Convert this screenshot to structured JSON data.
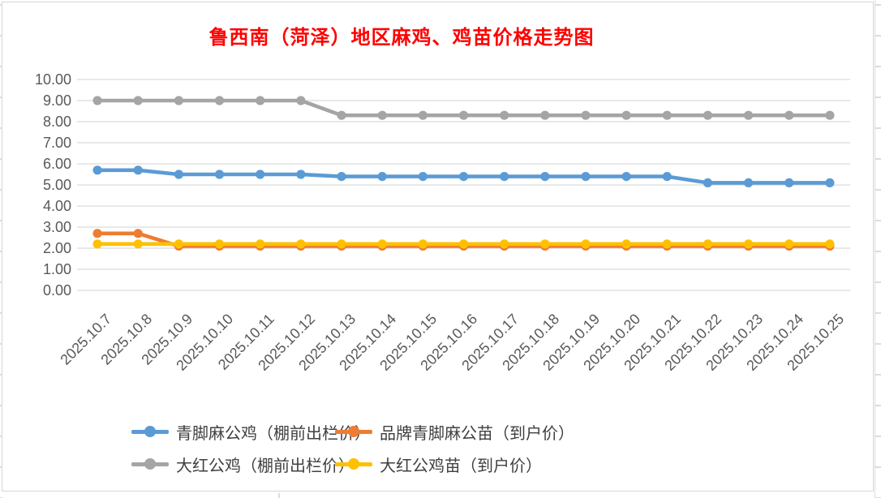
{
  "chart_data": {
    "type": "line",
    "title": "鲁西南（菏泽）地区麻鸡、鸡苗价格走势图",
    "title_color": "#FF0000",
    "categories": [
      "2025.10.7",
      "2025.10.8",
      "2025.10.9",
      "2025.10.10",
      "2025.10.11",
      "2025.10.12",
      "2025.10.13",
      "2025.10.14",
      "2025.10.15",
      "2025.10.16",
      "2025.10.17",
      "2025.10.18",
      "2025.10.19",
      "2025.10.20",
      "2025.10.21",
      "2025.10.22",
      "2025.10.23",
      "2025.10.24",
      "2025.10.25"
    ],
    "series": [
      {
        "name": "青脚麻公鸡（棚前出栏价）",
        "color": "#5B9BD5",
        "values": [
          5.7,
          5.7,
          5.5,
          5.5,
          5.5,
          5.5,
          5.4,
          5.4,
          5.4,
          5.4,
          5.4,
          5.4,
          5.4,
          5.4,
          5.4,
          5.1,
          5.1,
          5.1,
          5.1
        ]
      },
      {
        "name": "品牌青脚麻公苗（到户价）",
        "color": "#ED7D31",
        "values": [
          2.7,
          2.7,
          2.1,
          2.1,
          2.1,
          2.1,
          2.1,
          2.1,
          2.1,
          2.1,
          2.1,
          2.1,
          2.1,
          2.1,
          2.1,
          2.1,
          2.1,
          2.1,
          2.1
        ]
      },
      {
        "name": "大红公鸡（棚前出栏价）",
        "color": "#A5A5A5",
        "values": [
          9.0,
          9.0,
          9.0,
          9.0,
          9.0,
          9.0,
          8.3,
          8.3,
          8.3,
          8.3,
          8.3,
          8.3,
          8.3,
          8.3,
          8.3,
          8.3,
          8.3,
          8.3,
          8.3
        ]
      },
      {
        "name": "大红公鸡苗（到户价）",
        "color": "#FFC000",
        "values": [
          2.2,
          2.2,
          2.2,
          2.2,
          2.2,
          2.2,
          2.2,
          2.2,
          2.2,
          2.2,
          2.2,
          2.2,
          2.2,
          2.2,
          2.2,
          2.2,
          2.2,
          2.2,
          2.2
        ]
      }
    ],
    "ylim": [
      0,
      10
    ],
    "y_ticks": [
      "10.00",
      "9.00",
      "8.00",
      "7.00",
      "6.00",
      "5.00",
      "4.00",
      "3.00",
      "2.00",
      "1.00",
      "0.00"
    ],
    "grid": true,
    "legend_position": "bottom",
    "axis_text_color": "#595959",
    "gridline_color": "#D9D9D9"
  }
}
